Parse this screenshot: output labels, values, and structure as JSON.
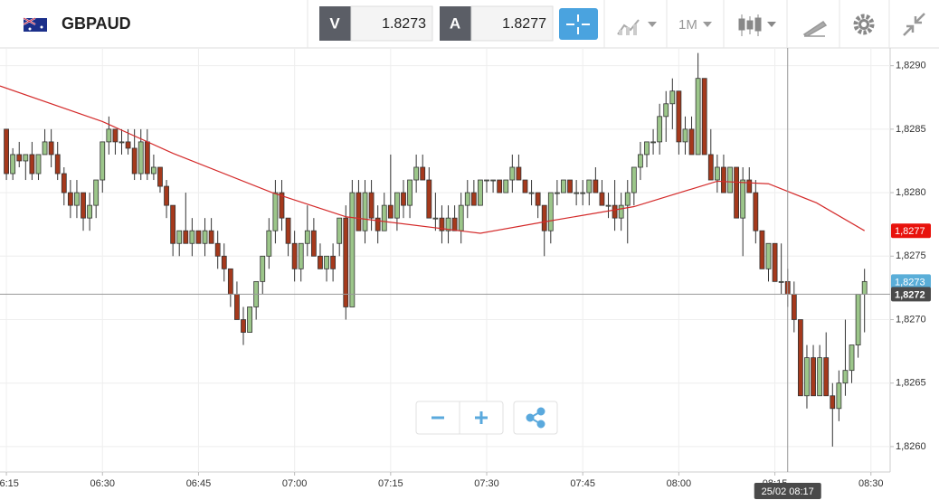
{
  "header": {
    "symbol": "GBPAUD",
    "bid_label": "V",
    "bid": "1.8273",
    "ask_label": "A",
    "ask": "1.8277",
    "timeframe": "1M"
  },
  "chart_data": {
    "type": "candlestick",
    "candles": [
      [
        1.8285,
        1.8285,
        1.8281,
        1.82815
      ],
      [
        1.82815,
        1.82835,
        1.8281,
        1.8283
      ],
      [
        1.8283,
        1.8284,
        1.8282,
        1.82825
      ],
      [
        1.82825,
        1.8283,
        1.8281,
        1.8283
      ],
      [
        1.8283,
        1.8284,
        1.8281,
        1.82815
      ],
      [
        1.82815,
        1.8283,
        1.8281,
        1.8283
      ],
      [
        1.8283,
        1.8285,
        1.8283,
        1.8284
      ],
      [
        1.8284,
        1.8285,
        1.8282,
        1.8283
      ],
      [
        1.8283,
        1.8284,
        1.8281,
        1.82815
      ],
      [
        1.82815,
        1.8282,
        1.8279,
        1.828
      ],
      [
        1.828,
        1.8281,
        1.8278,
        1.8279
      ],
      [
        1.8279,
        1.8281,
        1.8278,
        1.828
      ],
      [
        1.828,
        1.828,
        1.8277,
        1.8278
      ],
      [
        1.8278,
        1.828,
        1.8277,
        1.8279
      ],
      [
        1.8279,
        1.8281,
        1.8278,
        1.8281
      ],
      [
        1.8281,
        1.8284,
        1.828,
        1.8284
      ],
      [
        1.8284,
        1.8286,
        1.8283,
        1.8285
      ],
      [
        1.8285,
        1.8285,
        1.8283,
        1.8284
      ],
      [
        1.8284,
        1.8285,
        1.8283,
        1.8284
      ],
      [
        1.8284,
        1.8285,
        1.8283,
        1.82835
      ],
      [
        1.82835,
        1.8285,
        1.8281,
        1.82815
      ],
      [
        1.82815,
        1.8285,
        1.8281,
        1.8284
      ],
      [
        1.8284,
        1.8285,
        1.8281,
        1.82815
      ],
      [
        1.82815,
        1.8283,
        1.8281,
        1.8282
      ],
      [
        1.8282,
        1.8282,
        1.828,
        1.82805
      ],
      [
        1.82805,
        1.8281,
        1.8278,
        1.8279
      ],
      [
        1.8279,
        1.8279,
        1.8275,
        1.8276
      ],
      [
        1.8276,
        1.8277,
        1.8275,
        1.8277
      ],
      [
        1.8277,
        1.828,
        1.8276,
        1.8276
      ],
      [
        1.8276,
        1.8278,
        1.8275,
        1.8277
      ],
      [
        1.8277,
        1.8277,
        1.8276,
        1.8276
      ],
      [
        1.8276,
        1.8278,
        1.8275,
        1.8277
      ],
      [
        1.8277,
        1.8278,
        1.8276,
        1.8276
      ],
      [
        1.8276,
        1.8277,
        1.8274,
        1.8275
      ],
      [
        1.8275,
        1.8276,
        1.8273,
        1.8274
      ],
      [
        1.8274,
        1.8274,
        1.8271,
        1.8272
      ],
      [
        1.8272,
        1.8273,
        1.827,
        1.827
      ],
      [
        1.827,
        1.8271,
        1.8268,
        1.8269
      ],
      [
        1.8269,
        1.8271,
        1.8269,
        1.8271
      ],
      [
        1.8271,
        1.8273,
        1.827,
        1.8273
      ],
      [
        1.8273,
        1.8275,
        1.8272,
        1.8275
      ],
      [
        1.8275,
        1.8278,
        1.8274,
        1.8277
      ],
      [
        1.8277,
        1.8281,
        1.8276,
        1.828
      ],
      [
        1.828,
        1.8281,
        1.8277,
        1.8278
      ],
      [
        1.8278,
        1.8278,
        1.8275,
        1.8276
      ],
      [
        1.8276,
        1.8277,
        1.8273,
        1.8274
      ],
      [
        1.8274,
        1.8276,
        1.8273,
        1.8276
      ],
      [
        1.8276,
        1.8279,
        1.8275,
        1.8277
      ],
      [
        1.8277,
        1.8278,
        1.8275,
        1.8275
      ],
      [
        1.8275,
        1.8276,
        1.8274,
        1.8274
      ],
      [
        1.8274,
        1.8275,
        1.8273,
        1.8275
      ],
      [
        1.8275,
        1.8276,
        1.8273,
        1.8274
      ],
      [
        1.8276,
        1.8278,
        1.8275,
        1.8278
      ],
      [
        1.8278,
        1.8279,
        1.827,
        1.8271
      ],
      [
        1.8271,
        1.8281,
        1.8271,
        1.828
      ],
      [
        1.828,
        1.8281,
        1.8277,
        1.8277
      ],
      [
        1.8277,
        1.8281,
        1.8276,
        1.828
      ],
      [
        1.828,
        1.8281,
        1.8277,
        1.8278
      ],
      [
        1.8278,
        1.8279,
        1.8276,
        1.8277
      ],
      [
        1.8277,
        1.828,
        1.8277,
        1.8279
      ],
      [
        1.8279,
        1.8283,
        1.8278,
        1.8278
      ],
      [
        1.8278,
        1.828,
        1.8277,
        1.828
      ],
      [
        1.828,
        1.8281,
        1.8278,
        1.8279
      ],
      [
        1.8279,
        1.8281,
        1.8278,
        1.8281
      ],
      [
        1.8281,
        1.8283,
        1.828,
        1.8282
      ],
      [
        1.8282,
        1.8283,
        1.8281,
        1.8281
      ],
      [
        1.8281,
        1.8282,
        1.8278,
        1.8278
      ],
      [
        1.8278,
        1.828,
        1.8277,
        1.8278
      ],
      [
        1.8278,
        1.8279,
        1.8276,
        1.8277
      ],
      [
        1.8277,
        1.8279,
        1.8276,
        1.8278
      ],
      [
        1.8278,
        1.8279,
        1.8277,
        1.8277
      ],
      [
        1.8277,
        1.828,
        1.8276,
        1.8279
      ],
      [
        1.8279,
        1.8281,
        1.8278,
        1.828
      ],
      [
        1.828,
        1.8281,
        1.8279,
        1.8279
      ],
      [
        1.8279,
        1.8281,
        1.8279,
        1.8281
      ],
      [
        1.8281,
        1.8281,
        1.828,
        1.8281
      ],
      [
        1.8281,
        1.8281,
        1.828,
        1.8281
      ],
      [
        1.8281,
        1.8281,
        1.828,
        1.828
      ],
      [
        1.828,
        1.8281,
        1.828,
        1.8281
      ],
      [
        1.8281,
        1.8283,
        1.828,
        1.8282
      ],
      [
        1.8282,
        1.8283,
        1.8281,
        1.8281
      ],
      [
        1.8281,
        1.8281,
        1.828,
        1.828
      ],
      [
        1.828,
        1.8281,
        1.8279,
        1.828
      ],
      [
        1.828,
        1.828,
        1.8278,
        1.8279
      ],
      [
        1.8279,
        1.8279,
        1.8275,
        1.8277
      ],
      [
        1.8277,
        1.828,
        1.8276,
        1.828
      ],
      [
        1.828,
        1.8281,
        1.8279,
        1.828
      ],
      [
        1.828,
        1.8281,
        1.828,
        1.8281
      ],
      [
        1.8281,
        1.8281,
        1.828,
        1.828
      ],
      [
        1.828,
        1.8281,
        1.8279,
        1.828
      ],
      [
        1.828,
        1.8281,
        1.8279,
        1.828
      ],
      [
        1.828,
        1.8281,
        1.8279,
        1.8281
      ],
      [
        1.8281,
        1.8282,
        1.828,
        1.828
      ],
      [
        1.828,
        1.8281,
        1.8279,
        1.8279
      ],
      [
        1.8279,
        1.828,
        1.8278,
        1.8279
      ],
      [
        1.8279,
        1.8281,
        1.8277,
        1.8278
      ],
      [
        1.8278,
        1.828,
        1.8277,
        1.8279
      ],
      [
        1.8279,
        1.8281,
        1.8276,
        1.828
      ],
      [
        1.828,
        1.8282,
        1.8279,
        1.8282
      ],
      [
        1.8282,
        1.8284,
        1.8281,
        1.8283
      ],
      [
        1.8283,
        1.8284,
        1.8282,
        1.8284
      ],
      [
        1.8284,
        1.8285,
        1.8283,
        1.8284
      ],
      [
        1.8284,
        1.8287,
        1.8283,
        1.8286
      ],
      [
        1.8286,
        1.8288,
        1.8284,
        1.8287
      ],
      [
        1.8287,
        1.8289,
        1.8285,
        1.8288
      ],
      [
        1.8288,
        1.8288,
        1.8283,
        1.8284
      ],
      [
        1.8284,
        1.8286,
        1.8283,
        1.8285
      ],
      [
        1.8285,
        1.8286,
        1.8283,
        1.8283
      ],
      [
        1.8283,
        1.8291,
        1.8283,
        1.8289
      ],
      [
        1.8289,
        1.8289,
        1.8283,
        1.8283
      ],
      [
        1.8283,
        1.8285,
        1.8281,
        1.8281
      ],
      [
        1.8281,
        1.8283,
        1.828,
        1.8282
      ],
      [
        1.8282,
        1.8283,
        1.828,
        1.828
      ],
      [
        1.828,
        1.8282,
        1.828,
        1.8282
      ],
      [
        1.8282,
        1.8282,
        1.8278,
        1.8278
      ],
      [
        1.8278,
        1.8282,
        1.8275,
        1.8281
      ],
      [
        1.8281,
        1.8282,
        1.828,
        1.828
      ],
      [
        1.828,
        1.8281,
        1.8276,
        1.8277
      ],
      [
        1.8277,
        1.8277,
        1.8274,
        1.8274
      ],
      [
        1.8274,
        1.8276,
        1.8273,
        1.8276
      ],
      [
        1.8276,
        1.8276,
        1.8273,
        1.8273
      ],
      [
        1.8273,
        1.8276,
        1.8272,
        1.8273
      ],
      [
        1.8273,
        1.8274,
        1.8271,
        1.8272
      ],
      [
        1.8272,
        1.8273,
        1.8269,
        1.827
      ],
      [
        1.827,
        1.827,
        1.8264,
        1.8264
      ],
      [
        1.8264,
        1.8268,
        1.8263,
        1.8267
      ],
      [
        1.8267,
        1.8268,
        1.8264,
        1.8264
      ],
      [
        1.8264,
        1.8268,
        1.8264,
        1.8267
      ],
      [
        1.8267,
        1.8269,
        1.8264,
        1.8264
      ],
      [
        1.8264,
        1.8265,
        1.826,
        1.8263
      ],
      [
        1.8263,
        1.8266,
        1.8262,
        1.8265
      ],
      [
        1.8265,
        1.827,
        1.8264,
        1.8266
      ],
      [
        1.8266,
        1.8268,
        1.8265,
        1.8268
      ],
      [
        1.8268,
        1.8272,
        1.8267,
        1.8272
      ],
      [
        1.8272,
        1.8274,
        1.8269,
        1.8273
      ]
    ],
    "up_color": "#9cc68a",
    "down_color": "#a5391c",
    "xlim": [
      -1,
      138
    ],
    "xticks": [
      {
        "value": 0,
        "label": "06:15"
      },
      {
        "value": 15,
        "label": "06:30"
      },
      {
        "value": 30,
        "label": "06:45"
      },
      {
        "value": 45,
        "label": "07:00"
      },
      {
        "value": 60,
        "label": "07:15"
      },
      {
        "value": 75,
        "label": "07:30"
      },
      {
        "value": 90,
        "label": "07:45"
      },
      {
        "value": 105,
        "label": "08:00"
      },
      {
        "value": 120,
        "label": "08:15"
      },
      {
        "value": 135,
        "label": "08:30"
      }
    ],
    "ylim": [
      1.8258,
      1.82914
    ],
    "yticks": [
      {
        "value": 1.826,
        "label": "1,8260"
      },
      {
        "value": 1.8265,
        "label": "1,8265"
      },
      {
        "value": 1.827,
        "label": "1,8270"
      },
      {
        "value": 1.8275,
        "label": "1,8275"
      },
      {
        "value": 1.828,
        "label": "1,8280"
      },
      {
        "value": 1.8285,
        "label": "1,8285"
      },
      {
        "value": 1.829,
        "label": "1,8290"
      }
    ],
    "grid": true,
    "moving_average": {
      "color": "#d42a2a",
      "x": [
        -1,
        15,
        26,
        41.5,
        53,
        74,
        84,
        98,
        111,
        119,
        126.5,
        134
      ],
      "values": [
        1.82884,
        1.82856,
        1.82831,
        1.828,
        1.82781,
        1.82768,
        1.82777,
        1.82789,
        1.82809,
        1.82807,
        1.82792,
        1.8277
      ]
    },
    "price_tags": [
      {
        "value": 1.8277,
        "label": "1,8277",
        "color": "#e8120c"
      },
      {
        "value": 1.8273,
        "label": "1,8273",
        "color": "#5aaed8"
      }
    ],
    "crosshair": {
      "x": 122,
      "x_label": "25/02 08:17",
      "y_value": 1.8272,
      "y_label": "1,8272",
      "color": "#4a4a4a"
    }
  }
}
